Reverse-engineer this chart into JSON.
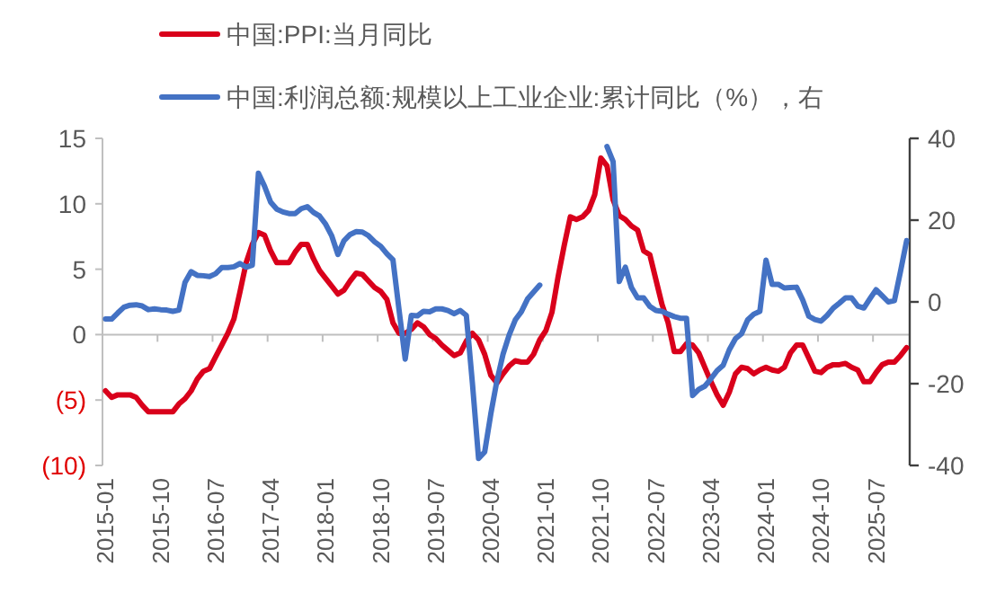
{
  "chart_data": {
    "type": "line",
    "legend": "top",
    "categories": [
      "2015-01",
      null,
      null,
      null,
      null,
      null,
      null,
      null,
      null,
      "2015-10",
      null,
      null,
      null,
      null,
      null,
      null,
      null,
      null,
      "2016-07",
      null,
      null,
      null,
      null,
      null,
      null,
      null,
      null,
      "2017-04",
      null,
      null,
      null,
      null,
      null,
      null,
      null,
      null,
      "2018-01",
      null,
      null,
      null,
      null,
      null,
      null,
      null,
      null,
      "2018-10",
      null,
      null,
      null,
      null,
      null,
      null,
      null,
      null,
      "2019-07",
      null,
      null,
      null,
      null,
      null,
      null,
      null,
      null,
      "2020-04",
      null,
      null,
      null,
      null,
      null,
      null,
      null,
      null,
      "2021-01",
      null,
      null,
      null,
      null,
      null,
      null,
      null,
      null,
      "2021-10",
      null,
      null,
      null,
      null,
      null,
      null,
      null,
      null,
      "2022-07",
      null,
      null,
      null,
      null,
      null,
      null,
      null,
      null,
      "2023-04",
      null,
      null,
      null,
      null,
      null,
      null,
      null,
      null,
      "2024-01",
      null,
      null,
      null,
      null,
      null,
      null,
      null,
      null,
      "2024-10",
      null,
      null,
      null,
      null,
      null,
      null,
      null,
      null,
      "2025-07",
      null,
      null,
      null,
      null,
      null
    ],
    "ylim": [
      -10,
      15
    ],
    "yticks": [
      {
        "value": -10,
        "label": "(10)"
      },
      {
        "value": -5,
        "label": "(5)"
      },
      0,
      5,
      10,
      15
    ],
    "y2lim": [
      -40,
      40
    ],
    "y2ticks": [
      -40,
      -20,
      0,
      20,
      40
    ],
    "series": [
      {
        "name": "中国:PPI:当月同比",
        "color": "#d9001b",
        "values": [
          -4.3,
          -4.8,
          -4.6,
          -4.6,
          -4.6,
          -4.8,
          -5.4,
          -5.9,
          -5.9,
          -5.9,
          -5.9,
          -5.9,
          -5.3,
          -4.9,
          -4.3,
          -3.4,
          -2.8,
          -2.6,
          -1.7,
          -0.8,
          0.1,
          1.2,
          3.3,
          5.5,
          6.9,
          7.8,
          7.6,
          6.4,
          5.5,
          5.5,
          5.5,
          6.3,
          6.9,
          6.9,
          5.8,
          4.9,
          4.3,
          3.7,
          3.1,
          3.4,
          4.1,
          4.7,
          4.6,
          4.1,
          3.6,
          3.3,
          2.7,
          0.9,
          0.1,
          0.1,
          0.4,
          0.9,
          0.6,
          0.0,
          -0.3,
          -0.8,
          -1.2,
          -1.6,
          -1.4,
          -0.5,
          0.1,
          -0.4,
          -1.5,
          -3.1,
          -3.7,
          -3.0,
          -2.4,
          -2.0,
          -2.1,
          -2.1,
          -1.5,
          -0.4,
          0.3,
          1.7,
          4.4,
          6.8,
          9.0,
          8.8,
          9.0,
          9.5,
          10.7,
          13.5,
          12.9,
          10.3,
          9.1,
          8.8,
          8.3,
          8.0,
          6.4,
          6.1,
          4.2,
          2.3,
          0.9,
          -1.3,
          -1.3,
          -0.7,
          -0.8,
          -1.4,
          -2.5,
          -3.6,
          -4.6,
          -5.4,
          -4.4,
          -3.0,
          -2.5,
          -2.6,
          -3.0,
          -2.7,
          -2.5,
          -2.7,
          -2.8,
          -2.5,
          -1.4,
          -0.8,
          -0.8,
          -1.8,
          -2.8,
          -2.9,
          -2.5,
          -2.3,
          -2.3,
          -2.2,
          -2.5,
          -2.7,
          -3.6,
          -3.6,
          -2.9,
          -2.3,
          -2.1,
          -2.1,
          -1.6,
          -1.0
        ]
      },
      {
        "name": "中国:利润总额:规模以上工业企业:累计同比（%），右",
        "color": "#4472c4",
        "axis": "y2",
        "values": [
          -4.2,
          -4.2,
          -2.7,
          -1.3,
          -0.8,
          -0.7,
          -1.0,
          -1.9,
          -1.7,
          -1.9,
          -2.0,
          -2.3,
          -2.0,
          4.8,
          7.4,
          6.5,
          6.4,
          6.2,
          6.9,
          8.4,
          8.4,
          8.6,
          9.4,
          8.5,
          9.0,
          31.5,
          28.3,
          24.4,
          22.7,
          22.0,
          21.6,
          21.6,
          22.8,
          23.3,
          21.9,
          21.0,
          19.0,
          16.1,
          11.6,
          15.0,
          16.5,
          17.2,
          17.1,
          16.2,
          14.7,
          13.6,
          11.8,
          10.3,
          -2.0,
          -14.0,
          -3.3,
          -3.4,
          -2.3,
          -2.4,
          -1.7,
          -1.7,
          -2.1,
          -2.9,
          -2.1,
          -3.3,
          -20.0,
          -38.3,
          -36.7,
          -27.4,
          -19.3,
          -12.8,
          -8.1,
          -4.4,
          -2.4,
          0.7,
          2.4,
          4.1,
          null,
          null,
          null,
          null,
          null,
          null,
          null,
          null,
          null,
          null,
          38.0,
          34.3,
          5.0,
          8.5,
          3.5,
          1.0,
          1.0,
          -1.1,
          -2.1,
          -2.3,
          -3.0,
          -3.6,
          -4.0,
          -4.0,
          -22.9,
          -21.4,
          -20.6,
          -18.8,
          -16.8,
          -15.5,
          -11.7,
          -9.0,
          -7.8,
          -4.4,
          -3.0,
          -2.3,
          10.2,
          4.3,
          4.3,
          3.4,
          3.5,
          3.6,
          0.5,
          -3.5,
          -4.3,
          -4.7,
          -3.3,
          -1.5,
          -0.3,
          1.0,
          1.0,
          -1.0,
          -1.5,
          0.8,
          3.0,
          1.5,
          0.0,
          0.3,
          7.5,
          15.0
        ]
      }
    ]
  }
}
